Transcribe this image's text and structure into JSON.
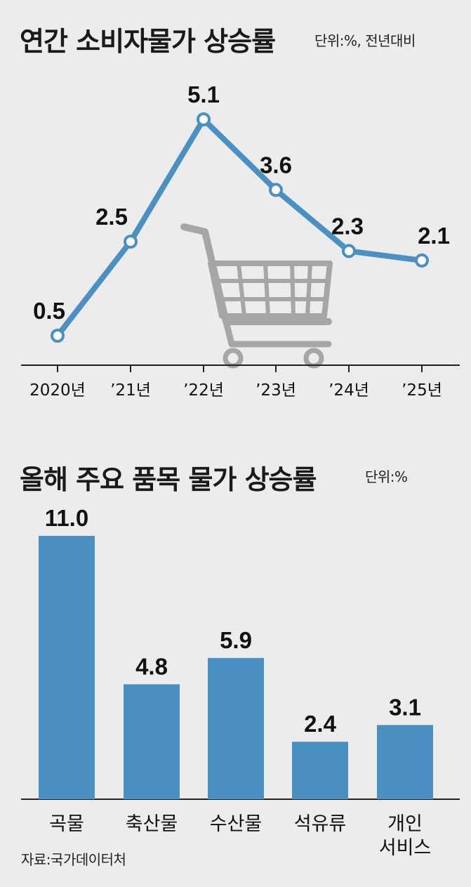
{
  "chart_data": [
    {
      "type": "line",
      "title": "연간 소비자물가 상승률",
      "unit_note": "단위:%, 전년대비",
      "categories": [
        "2020년",
        "’21년",
        "’22년",
        "’23년",
        "’24년",
        "’25년"
      ],
      "values": [
        0.5,
        2.5,
        5.1,
        3.6,
        2.3,
        2.1
      ],
      "value_labels": [
        "0.5",
        "2.5",
        "5.1",
        "3.6",
        "2.3",
        "2.1"
      ],
      "ylim": [
        0,
        5.1
      ],
      "grid": false,
      "line_color": "#4a90c2",
      "decoration": "shopping-cart-icon"
    },
    {
      "type": "bar",
      "title": "올해 주요 품목 물가 상승률",
      "unit_note": "단위:%",
      "categories": [
        "곡물",
        "축산물",
        "수산물",
        "석유류",
        "개인\n서비스"
      ],
      "values": [
        11.0,
        4.8,
        5.9,
        2.4,
        3.1
      ],
      "value_labels": [
        "11.0",
        "4.8",
        "5.9",
        "2.4",
        "3.1"
      ],
      "ylim": [
        0,
        11.0
      ],
      "bar_color": "#4a90c2"
    }
  ],
  "source": "자료:국가데이터처",
  "colors": {
    "background": "#ececec",
    "accent": "#4a90c2",
    "axis": "#222222",
    "cart": "#a6a6a6"
  }
}
